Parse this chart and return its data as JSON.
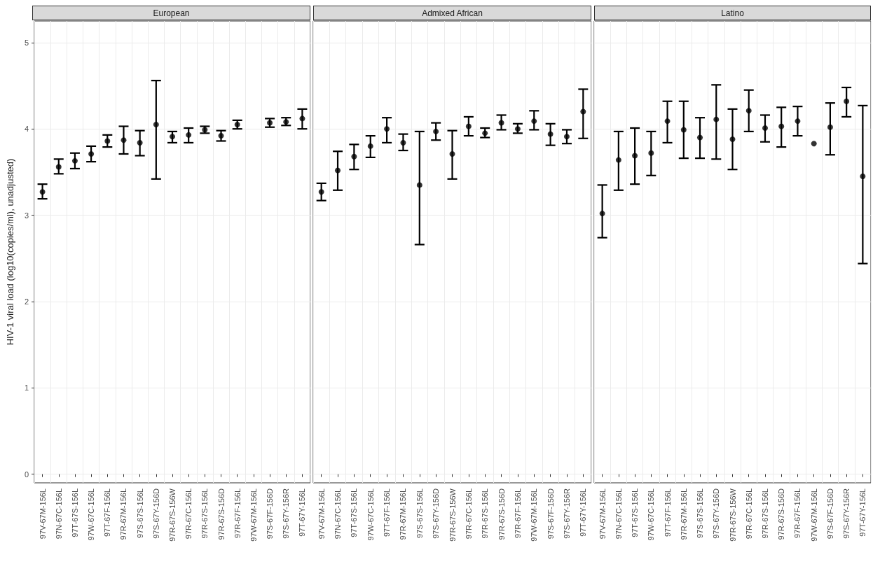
{
  "chart_data": [
    {
      "type": "scatter",
      "title": "European",
      "ylabel": "HIV-1 viral load (log10(copies/ml), unadjusted)",
      "marker": "circle",
      "grid": true,
      "color": "#000000",
      "categories": [
        "97V-67M-156L",
        "97N-67C-156L",
        "97T-67S-156L",
        "97W-67C-156L",
        "97T-67F-156L",
        "97R-67M-156L",
        "97S-67S-156L",
        "97S-67Y-156D",
        "97R-67S-156W",
        "97R-67C-156L",
        "97R-67S-156L",
        "97R-67S-156D",
        "97R-67F-156L",
        "97W-67M-156L",
        "97S-67F-156D",
        "97S-67Y-156R",
        "97T-67Y-156L"
      ],
      "values": [
        3.27,
        3.56,
        3.63,
        3.71,
        3.86,
        3.87,
        3.84,
        4.05,
        3.91,
        3.93,
        3.99,
        3.92,
        4.05,
        null,
        4.07,
        4.08,
        4.12
      ],
      "errors": [
        [
          3.19,
          3.36
        ],
        [
          3.48,
          3.65
        ],
        [
          3.54,
          3.72
        ],
        [
          3.62,
          3.8
        ],
        [
          3.79,
          3.93
        ],
        [
          3.71,
          4.03
        ],
        [
          3.69,
          3.98
        ],
        [
          3.42,
          4.56
        ],
        [
          3.84,
          3.97
        ],
        [
          3.84,
          4.01
        ],
        [
          3.95,
          4.03
        ],
        [
          3.86,
          3.98
        ],
        [
          4.0,
          4.1
        ],
        null,
        [
          4.02,
          4.12
        ],
        [
          4.04,
          4.13
        ],
        [
          4.0,
          4.23
        ]
      ],
      "ylim": [
        -0.1,
        5.25
      ],
      "yticks": [
        0,
        1,
        2,
        3,
        4,
        5
      ]
    },
    {
      "type": "scatter",
      "title": "Admixed African",
      "marker": "circle",
      "grid": true,
      "color": "#000000",
      "tick_labels": "x",
      "categories": [
        "97V-67M-156L",
        "97N-67C-156L",
        "97T-67S-156L",
        "97W-67C-156L",
        "97T-67F-156L",
        "97R-67M-156L",
        "97S-67S-156L",
        "97S-67Y-156D",
        "97R-67S-156W",
        "97R-67C-156L",
        "97R-67S-156L",
        "97R-67S-156D",
        "97R-67F-156L",
        "97W-67M-156L",
        "97S-67F-156D",
        "97S-67Y-156R",
        "97T-67Y-156L"
      ],
      "values": [
        3.27,
        3.52,
        3.68,
        3.8,
        4.0,
        3.84,
        3.35,
        3.97,
        3.71,
        4.03,
        3.95,
        4.07,
        4.0,
        4.09,
        3.94,
        3.91,
        4.2
      ],
      "errors": [
        [
          3.17,
          3.37
        ],
        [
          3.29,
          3.74
        ],
        [
          3.53,
          3.82
        ],
        [
          3.67,
          3.92
        ],
        [
          3.84,
          4.13
        ],
        [
          3.75,
          3.94
        ],
        [
          2.66,
          3.97
        ],
        [
          3.87,
          4.07
        ],
        [
          3.42,
          3.98
        ],
        [
          3.92,
          4.14
        ],
        [
          3.9,
          4.01
        ],
        [
          3.99,
          4.16
        ],
        [
          3.95,
          4.06
        ],
        [
          3.99,
          4.21
        ],
        [
          3.81,
          4.06
        ],
        [
          3.83,
          3.99
        ],
        [
          3.89,
          4.46
        ]
      ],
      "ylim": [
        -0.1,
        5.25
      ],
      "yticks": [
        0,
        1,
        2,
        3,
        4,
        5
      ]
    },
    {
      "type": "scatter",
      "title": "Latino",
      "marker": "circle",
      "grid": true,
      "color": "#000000",
      "tick_labels": "x",
      "categories": [
        "97V-67M-156L",
        "97N-67C-156L",
        "97T-67S-156L",
        "97W-67C-156L",
        "97T-67F-156L",
        "97R-67M-156L",
        "97S-67S-156L",
        "97S-67Y-156D",
        "97R-67S-156W",
        "97R-67C-156L",
        "97R-67S-156L",
        "97R-67S-156D",
        "97R-67F-156L",
        "97W-67M-156L",
        "97S-67F-156D",
        "97S-67Y-156R",
        "97T-67Y-156L"
      ],
      "values": [
        3.02,
        3.64,
        3.69,
        3.72,
        4.09,
        3.99,
        3.9,
        4.11,
        3.88,
        4.21,
        4.01,
        4.03,
        4.09,
        3.83,
        4.02,
        4.32,
        3.45
      ],
      "errors": [
        [
          2.74,
          3.35
        ],
        [
          3.29,
          3.97
        ],
        [
          3.36,
          4.01
        ],
        [
          3.46,
          3.97
        ],
        [
          3.84,
          4.32
        ],
        [
          3.66,
          4.32
        ],
        [
          3.66,
          4.13
        ],
        [
          3.65,
          4.51
        ],
        [
          3.53,
          4.23
        ],
        [
          3.97,
          4.45
        ],
        [
          3.85,
          4.16
        ],
        [
          3.79,
          4.25
        ],
        [
          3.92,
          4.26
        ],
        null,
        [
          3.7,
          4.3
        ],
        [
          4.14,
          4.48
        ],
        [
          2.44,
          4.27
        ]
      ],
      "ylim": [
        -0.1,
        5.25
      ],
      "yticks": [
        0,
        1,
        2,
        3,
        4,
        5
      ]
    }
  ]
}
